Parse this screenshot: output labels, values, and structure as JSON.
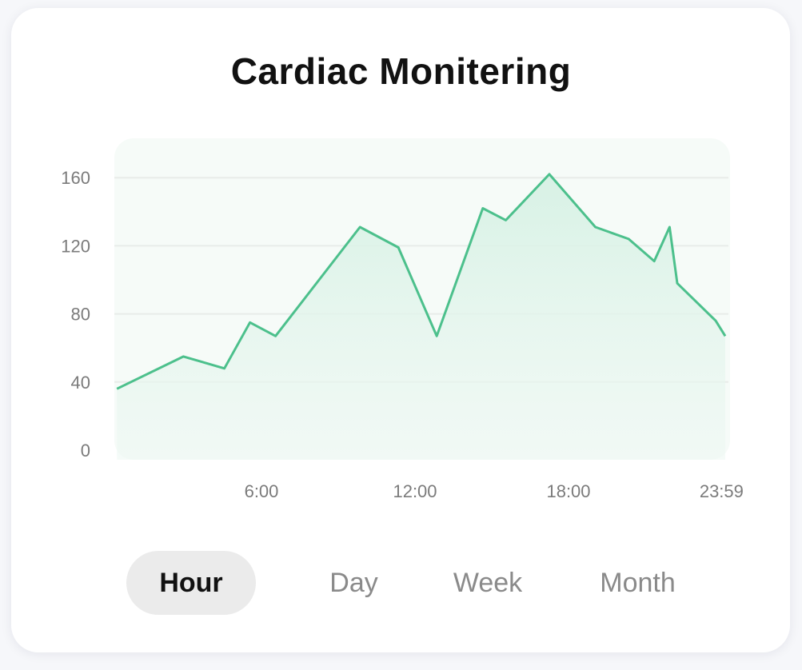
{
  "title": "Cardiac Monitering",
  "tabs": [
    {
      "label": "Hour",
      "active": true
    },
    {
      "label": "Day",
      "active": false
    },
    {
      "label": "Week",
      "active": false
    },
    {
      "label": "Month",
      "active": false
    }
  ],
  "colors": {
    "line": "#4cc08c",
    "fill": "#dff4eb",
    "plot_bg": "#f6fbf8",
    "grid": "#e8ece9"
  },
  "chart_data": {
    "type": "area",
    "x_tick_labels": [
      "6:00",
      "12:00",
      "18:00",
      "23:59"
    ],
    "x_ticks_hours": [
      6,
      12,
      18,
      23.98
    ],
    "y_ticks": [
      0,
      40,
      80,
      120,
      160
    ],
    "ylim": [
      0,
      180
    ],
    "xlim": [
      0,
      24
    ],
    "grid": "horizontal",
    "points": [
      [
        0.1,
        36
      ],
      [
        2.7,
        55
      ],
      [
        4.3,
        48
      ],
      [
        5.3,
        75
      ],
      [
        6.3,
        67
      ],
      [
        9.6,
        131
      ],
      [
        11.1,
        119
      ],
      [
        12.6,
        67
      ],
      [
        14.4,
        142
      ],
      [
        15.3,
        135
      ],
      [
        17.0,
        162
      ],
      [
        18.8,
        131
      ],
      [
        20.1,
        124
      ],
      [
        21.1,
        111
      ],
      [
        21.7,
        131
      ],
      [
        22.0,
        98
      ],
      [
        23.5,
        76
      ],
      [
        24.0,
        67
      ],
      [
        24.9,
        67
      ]
    ]
  }
}
